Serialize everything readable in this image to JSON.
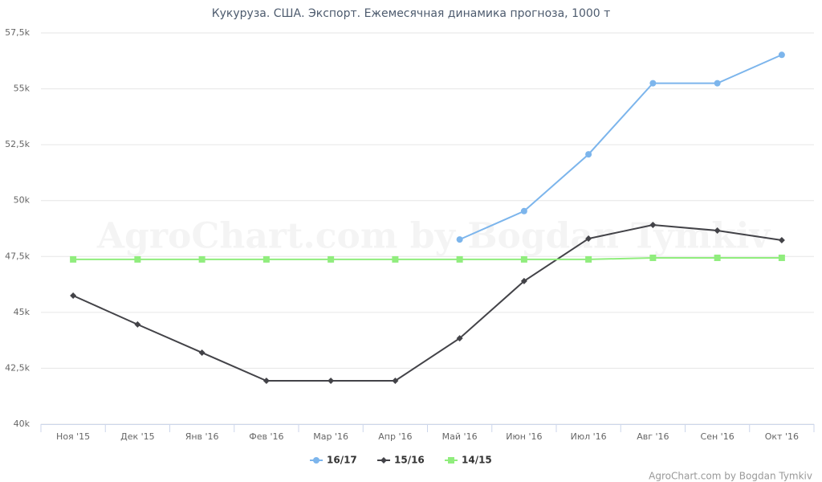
{
  "chart_data": {
    "type": "line",
    "title": "Кукуруза. США. Экспорт. Ежемесячная динамика прогноза, 1000 т",
    "categories": [
      "Ноя '15",
      "Дек '15",
      "Янв '16",
      "Фев '16",
      "Мар '16",
      "Апр '16",
      "Май '16",
      "Июн '16",
      "Июл '16",
      "Авг '16",
      "Сен '16",
      "Окт '16"
    ],
    "series": [
      {
        "name": "16/17",
        "color": "#7cb5ec",
        "marker": "circle",
        "values": [
          null,
          null,
          null,
          null,
          null,
          null,
          48260,
          49530,
          52070,
          55250,
          55250,
          56520
        ]
      },
      {
        "name": "15/16",
        "color": "#434348",
        "marker": "diamond",
        "values": [
          45750,
          44460,
          43200,
          41940,
          41940,
          41940,
          43840,
          46400,
          48300,
          48910,
          48660,
          48230
        ]
      },
      {
        "name": "14/15",
        "color": "#90ed7d",
        "marker": "square",
        "values": [
          47370,
          47370,
          47370,
          47370,
          47370,
          47370,
          47370,
          47370,
          47370,
          47440,
          47440,
          47440
        ]
      }
    ],
    "ylim": [
      40000,
      57500
    ],
    "yticks": [
      {
        "value": 40000,
        "label": "40k"
      },
      {
        "value": 42500,
        "label": "42,5k"
      },
      {
        "value": 45000,
        "label": "45k"
      },
      {
        "value": 47500,
        "label": "47,5k"
      },
      {
        "value": 50000,
        "label": "50k"
      },
      {
        "value": 52500,
        "label": "52,5k"
      },
      {
        "value": 55000,
        "label": "55k"
      },
      {
        "value": 57500,
        "label": "57,5k"
      }
    ],
    "grid": true,
    "watermark": "AgroChart.com by Bogdan Tymkiv",
    "credit": "AgroChart.com by Bogdan Tymkiv"
  }
}
